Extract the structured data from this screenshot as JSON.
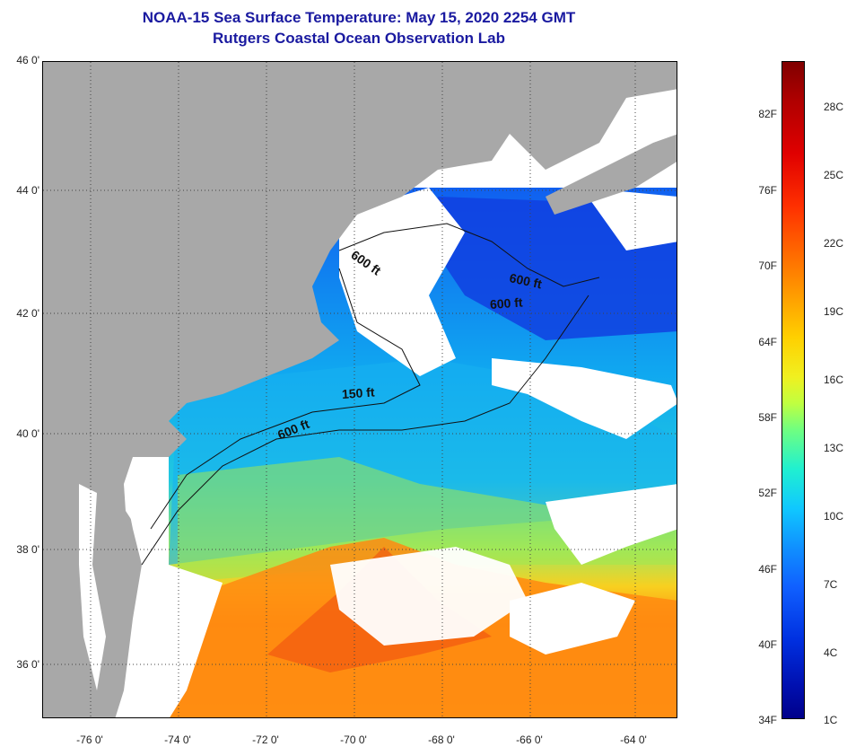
{
  "title": {
    "line1": "NOAA-15 Sea Surface Temperature:  May 15, 2020 2254 GMT",
    "line2": "Rutgers Coastal Ocean Observation Lab"
  },
  "map": {
    "lat_labels": [
      "46 0'",
      "44 0'",
      "42 0'",
      "40 0'",
      "38 0'",
      "36 0'"
    ],
    "lon_labels": [
      "-76 0'",
      "-74 0'",
      "-72 0'",
      "-70 0'",
      "-68 0'",
      "-66 0'",
      "-64 0'"
    ],
    "contour_labels": [
      "600 ft",
      "600 ft",
      "600 ft",
      "150 ft",
      "600 ft"
    ],
    "colors": {
      "land": "#a8a8a8",
      "cloud": "#ffffff",
      "frame": "#000000",
      "grid": "#444444"
    }
  },
  "colorbar": {
    "fahrenheit_labels": [
      "82F",
      "76F",
      "70F",
      "64F",
      "58F",
      "52F",
      "46F",
      "40F",
      "34F"
    ],
    "celsius_labels": [
      "28C",
      "25C",
      "22C",
      "19C",
      "16C",
      "13C",
      "10C",
      "7C",
      "4C",
      "1C"
    ]
  }
}
